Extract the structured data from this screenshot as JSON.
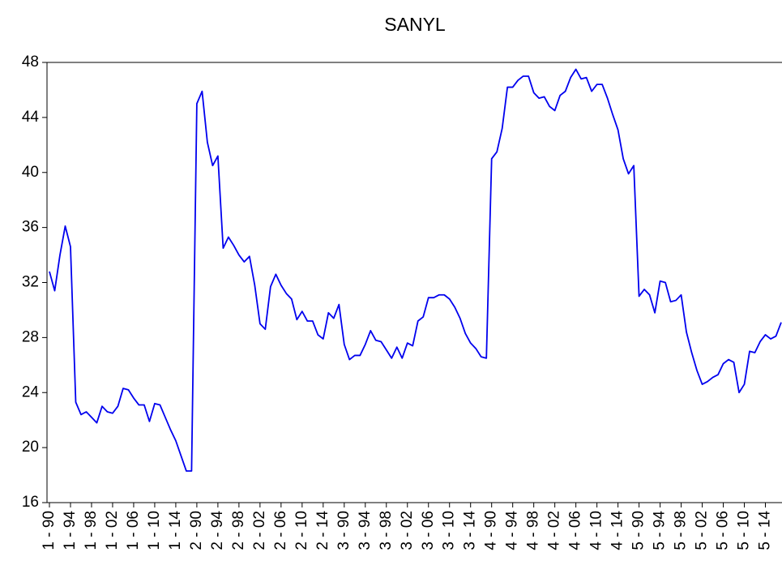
{
  "chart_data": {
    "type": "line",
    "title": "SANYL",
    "categories": [
      "1 - 90",
      null,
      null,
      null,
      "1 - 94",
      null,
      null,
      null,
      "1 - 98",
      null,
      null,
      null,
      "1 - 02",
      null,
      null,
      null,
      "1 - 06",
      null,
      null,
      null,
      "1 - 10",
      null,
      null,
      null,
      "1 - 14",
      null,
      null,
      null,
      "2 - 90",
      null,
      null,
      null,
      "2 - 94",
      null,
      null,
      null,
      "2 - 98",
      null,
      null,
      null,
      "2 - 02",
      null,
      null,
      null,
      "2 - 06",
      null,
      null,
      null,
      "2 - 10",
      null,
      null,
      null,
      "2 - 14",
      null,
      null,
      null,
      "3 - 90",
      null,
      null,
      null,
      "3 - 94",
      null,
      null,
      null,
      "3 - 98",
      null,
      null,
      null,
      "3 - 02",
      null,
      null,
      null,
      "3 - 06",
      null,
      null,
      null,
      "3 - 10",
      null,
      null,
      null,
      "3 - 14",
      null,
      null,
      null,
      "4 - 90",
      null,
      null,
      null,
      "4 - 94",
      null,
      null,
      null,
      "4 - 98",
      null,
      null,
      null,
      "4 - 02",
      null,
      null,
      null,
      "4 - 06",
      null,
      null,
      null,
      "4 - 10",
      null,
      null,
      null,
      "4 - 14",
      null,
      null,
      null,
      "5 - 90",
      null,
      null,
      null,
      "5 - 94",
      null,
      null,
      null,
      "5 - 98",
      null,
      null,
      null,
      "5 - 02",
      null,
      null,
      null,
      "5 - 06",
      null,
      null,
      null,
      "5 - 10",
      null,
      null,
      null,
      "5 - 14",
      null,
      null,
      null
    ],
    "series": [
      {
        "name": "SANYL",
        "color": "#0000ee",
        "values": [
          32.8,
          31.4,
          34.0,
          36.1,
          34.6,
          23.3,
          22.4,
          22.6,
          22.2,
          21.8,
          23.0,
          22.6,
          22.5,
          23.0,
          24.3,
          24.2,
          23.6,
          23.1,
          23.1,
          21.9,
          23.2,
          23.1,
          22.2,
          21.3,
          20.5,
          19.4,
          18.3,
          18.3,
          45.0,
          45.9,
          42.2,
          40.5,
          41.2,
          34.5,
          35.3,
          34.7,
          34.0,
          33.5,
          33.9,
          31.8,
          29.0,
          28.6,
          31.7,
          32.6,
          31.8,
          31.2,
          30.8,
          29.3,
          29.9,
          29.2,
          29.2,
          28.2,
          27.9,
          29.8,
          29.4,
          30.4,
          27.5,
          26.4,
          26.7,
          26.7,
          27.5,
          28.5,
          27.8,
          27.7,
          27.1,
          26.5,
          27.3,
          26.5,
          27.6,
          27.4,
          29.2,
          29.5,
          30.9,
          30.9,
          31.1,
          31.1,
          30.8,
          30.2,
          29.4,
          28.3,
          27.6,
          27.2,
          26.6,
          26.5,
          41.0,
          41.5,
          43.2,
          46.2,
          46.2,
          46.7,
          47.0,
          47.0,
          45.8,
          45.4,
          45.5,
          44.8,
          44.5,
          45.6,
          45.9,
          46.9,
          47.5,
          46.8,
          46.9,
          45.9,
          46.4,
          46.4,
          45.4,
          44.2,
          43.1,
          41.0,
          39.9,
          40.5,
          31.0,
          31.5,
          31.1,
          29.8,
          32.1,
          32.0,
          30.6,
          30.7,
          31.1,
          28.4,
          26.9,
          25.6,
          24.6,
          24.8,
          25.1,
          25.3,
          26.1,
          26.4,
          26.2,
          24.0,
          24.6,
          27.0,
          26.9,
          27.7,
          28.2,
          27.9,
          28.1,
          29.1
        ]
      }
    ],
    "ylim": [
      16,
      48
    ],
    "yticks": [
      16,
      20,
      24,
      28,
      32,
      36,
      40,
      44,
      48
    ]
  }
}
